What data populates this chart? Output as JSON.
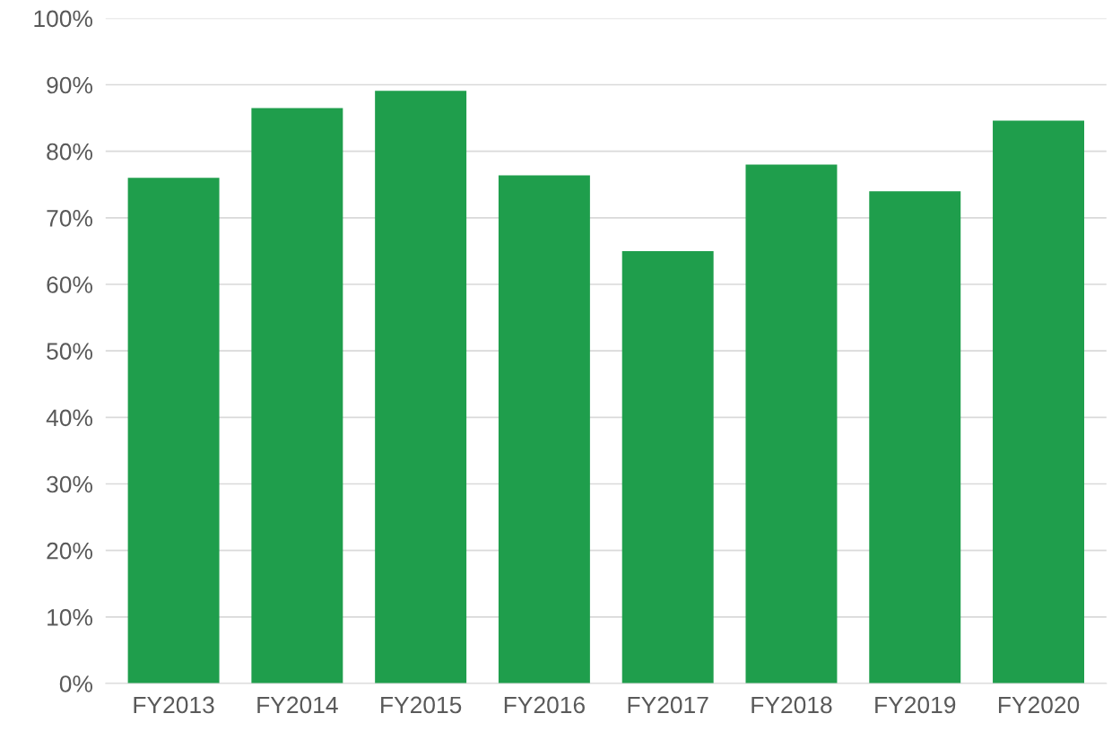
{
  "chart_data": {
    "type": "bar",
    "categories": [
      "FY2013",
      "FY2014",
      "FY2015",
      "FY2016",
      "FY2017",
      "FY2018",
      "FY2019",
      "FY2020"
    ],
    "values": [
      76.0,
      86.5,
      89.1,
      76.4,
      65.0,
      78.0,
      74.0,
      84.6
    ],
    "color": "#1f9e4c",
    "ylim": [
      0,
      100
    ],
    "yticks": [
      {
        "value": 0,
        "label": "0%"
      },
      {
        "value": 10,
        "label": "10%"
      },
      {
        "value": 20,
        "label": "20%"
      },
      {
        "value": 30,
        "label": "30%"
      },
      {
        "value": 40,
        "label": "40%"
      },
      {
        "value": 50,
        "label": "50%"
      },
      {
        "value": 60,
        "label": "60%"
      },
      {
        "value": 70,
        "label": "70%"
      },
      {
        "value": 80,
        "label": "80%"
      },
      {
        "value": 90,
        "label": "90%"
      },
      {
        "value": 100,
        "label": "100%"
      }
    ],
    "grid": "y"
  }
}
